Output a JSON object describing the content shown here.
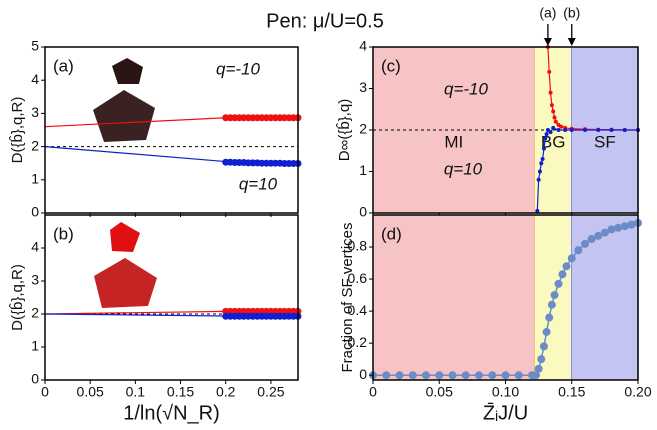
{
  "title": "Pen: μ/U=0.5",
  "chart_data": [
    {
      "type": "line",
      "panel": "(a)",
      "ylabel": "D({b̂},q,R)",
      "xlim": [
        0,
        0.28
      ],
      "ylim": [
        0,
        5
      ],
      "xticks": [
        0,
        0.05,
        0.1,
        0.15,
        0.2,
        0.25
      ],
      "show_xticklabels": false,
      "yticks": [
        0,
        1,
        2,
        3,
        4,
        5
      ],
      "hline": 2,
      "annotations": [
        {
          "text": "q=-10",
          "color": "#f01010"
        },
        {
          "text": "q=10",
          "color": "#1020d0"
        }
      ],
      "series": [
        {
          "color": "#f01010",
          "line_width": 1.2,
          "marker_size": 0,
          "x": [
            0,
            0.2
          ],
          "values": [
            2.6,
            2.87
          ]
        },
        {
          "color": "#f01010",
          "line_width": 0,
          "marker_size": 3.5,
          "x": [
            0.2,
            0.205,
            0.21,
            0.215,
            0.22,
            0.225,
            0.23,
            0.235,
            0.24,
            0.245,
            0.25,
            0.255,
            0.26,
            0.265,
            0.27,
            0.275,
            0.28
          ],
          "values": [
            2.87,
            2.87,
            2.87,
            2.87,
            2.87,
            2.87,
            2.87,
            2.87,
            2.87,
            2.87,
            2.87,
            2.87,
            2.87,
            2.87,
            2.87,
            2.87,
            2.87
          ]
        },
        {
          "color": "#1020d0",
          "line_width": 1.2,
          "marker_size": 0,
          "x": [
            0,
            0.2
          ],
          "values": [
            2.0,
            1.55
          ]
        },
        {
          "color": "#1020d0",
          "line_width": 0,
          "marker_size": 3.5,
          "x": [
            0.2,
            0.205,
            0.21,
            0.215,
            0.22,
            0.225,
            0.23,
            0.235,
            0.24,
            0.245,
            0.25,
            0.255,
            0.26,
            0.265,
            0.27,
            0.275,
            0.28
          ],
          "values": [
            1.53,
            1.53,
            1.52,
            1.52,
            1.52,
            1.51,
            1.51,
            1.51,
            1.5,
            1.5,
            1.5,
            1.5,
            1.5,
            1.49,
            1.49,
            1.49,
            1.49
          ]
        }
      ]
    },
    {
      "type": "line",
      "panel": "(b)",
      "ylabel": "D({b̂},q,R)",
      "xlabel": "1/ln(√N_R)",
      "xlim": [
        0,
        0.28
      ],
      "ylim": [
        0,
        5
      ],
      "xticks": [
        0,
        0.05,
        0.1,
        0.15,
        0.2,
        0.25
      ],
      "show_xticklabels": true,
      "yticks": [
        0,
        1,
        2,
        3,
        4
      ],
      "hline": 2,
      "series": [
        {
          "color": "#f01010",
          "line_width": 1.2,
          "marker_size": 0,
          "x": [
            0,
            0.2
          ],
          "values": [
            2.0,
            2.08
          ]
        },
        {
          "color": "#f01010",
          "line_width": 0,
          "marker_size": 3.5,
          "x": [
            0.2,
            0.205,
            0.21,
            0.215,
            0.22,
            0.225,
            0.23,
            0.235,
            0.24,
            0.245,
            0.25,
            0.255,
            0.26,
            0.265,
            0.27,
            0.275,
            0.28
          ],
          "values": [
            2.08,
            2.08,
            2.08,
            2.08,
            2.08,
            2.08,
            2.08,
            2.08,
            2.08,
            2.08,
            2.08,
            2.08,
            2.08,
            2.08,
            2.08,
            2.08,
            2.08
          ]
        },
        {
          "color": "#1020d0",
          "line_width": 1.2,
          "marker_size": 0,
          "x": [
            0,
            0.2
          ],
          "values": [
            2.0,
            1.94
          ]
        },
        {
          "color": "#1020d0",
          "line_width": 0,
          "marker_size": 3.5,
          "x": [
            0.2,
            0.205,
            0.21,
            0.215,
            0.22,
            0.225,
            0.23,
            0.235,
            0.24,
            0.245,
            0.25,
            0.255,
            0.26,
            0.265,
            0.27,
            0.275,
            0.28
          ],
          "values": [
            1.93,
            1.93,
            1.93,
            1.93,
            1.93,
            1.93,
            1.93,
            1.93,
            1.93,
            1.93,
            1.93,
            1.93,
            1.93,
            1.93,
            1.93,
            1.93,
            1.93
          ]
        }
      ]
    },
    {
      "type": "line",
      "panel": "(c)",
      "ylabel": "D∞({b̂},q)",
      "xlim": [
        0,
        0.2
      ],
      "ylim": [
        0,
        4
      ],
      "xticks": [
        0,
        0.05,
        0.1,
        0.15,
        0.2
      ],
      "show_xticklabels": false,
      "yticks": [
        0,
        1,
        2,
        3,
        4
      ],
      "hline": 2,
      "regions": [
        {
          "label": "MI",
          "range": [
            0,
            0.122
          ],
          "color": "#f6c4c4",
          "edge": "#f0a060"
        },
        {
          "label": "BG",
          "range": [
            0.122,
            0.15
          ],
          "color": "#fafac0",
          "edge": "#7878e8"
        },
        {
          "label": "SF",
          "range": [
            0.15,
            0.2
          ],
          "color": "#c4c4f2",
          "edge": "#c4c4f2"
        }
      ],
      "arrows": [
        {
          "label": "(a)",
          "x": 0.132
        },
        {
          "label": "(b)",
          "x": 0.15
        }
      ],
      "annotations": [
        {
          "text": "q=-10",
          "color": "#f01010"
        },
        {
          "text": "q=10",
          "color": "#1020d0"
        }
      ],
      "series": [
        {
          "color": "#f01010",
          "line_width": 1.2,
          "marker_size": 2,
          "x": [
            0.132,
            0.133,
            0.134,
            0.135,
            0.136,
            0.137,
            0.138,
            0.14,
            0.142,
            0.145,
            0.15,
            0.16,
            0.17,
            0.18,
            0.19,
            0.2
          ],
          "values": [
            4.0,
            3.4,
            2.9,
            2.6,
            2.45,
            2.3,
            2.2,
            2.12,
            2.08,
            2.05,
            2.03,
            2.02,
            2.01,
            2.01,
            2.0,
            2.0
          ]
        },
        {
          "color": "#1020d0",
          "line_width": 1.2,
          "marker_size": 2,
          "x": [
            0.124,
            0.125,
            0.126,
            0.127,
            0.128,
            0.129,
            0.13,
            0.131,
            0.132,
            0.134,
            0.136,
            0.14,
            0.145,
            0.15,
            0.16,
            0.17,
            0.18,
            0.19,
            0.2
          ],
          "values": [
            0.05,
            0.8,
            1.0,
            1.2,
            1.3,
            1.55,
            1.8,
            1.9,
            2.0,
            1.95,
            2.05,
            2.0,
            2.0,
            2.0,
            2.0,
            2.0,
            2.0,
            2.0,
            2.0
          ]
        }
      ]
    },
    {
      "type": "line",
      "panel": "(d)",
      "ylabel": "Fraction of SF vertices",
      "xlabel": "Z̄ᵢJ/U",
      "xlim": [
        0,
        0.2
      ],
      "ylim": [
        -0.03,
        1.0
      ],
      "xticks": [
        0,
        {
          "value": 0.05,
          "label": "0.05"
        },
        {
          "value": 0.1,
          "label": "0.10"
        },
        {
          "value": 0.15,
          "label": "0.15"
        },
        {
          "value": 0.2,
          "label": "0.20"
        }
      ],
      "show_xticklabels": true,
      "yticks": [
        0,
        0.2,
        0.4,
        0.6,
        0.8
      ],
      "regions": [
        {
          "range": [
            0,
            0.122
          ],
          "color": "#f6c4c4",
          "edge": "#f0a060"
        },
        {
          "range": [
            0.122,
            0.15
          ],
          "color": "#fafac0",
          "edge": "#7878e8"
        },
        {
          "range": [
            0.15,
            0.2
          ],
          "color": "#c4c4f2",
          "edge": "#c4c4f2"
        }
      ],
      "series": [
        {
          "color": "#6b8cc7",
          "line_width": 1.5,
          "marker_size": 4,
          "x": [
            0,
            0.01,
            0.02,
            0.03,
            0.04,
            0.05,
            0.06,
            0.07,
            0.08,
            0.09,
            0.1,
            0.11,
            0.12,
            0.123,
            0.125,
            0.127,
            0.129,
            0.131,
            0.133,
            0.135,
            0.137,
            0.14,
            0.143,
            0.146,
            0.15,
            0.155,
            0.16,
            0.165,
            0.17,
            0.175,
            0.18,
            0.185,
            0.19,
            0.195,
            0.2
          ],
          "values": [
            0,
            0,
            0,
            0,
            0,
            0,
            0,
            0,
            0,
            0,
            0,
            0,
            0,
            0.0,
            0.04,
            0.1,
            0.18,
            0.27,
            0.36,
            0.44,
            0.5,
            0.57,
            0.63,
            0.68,
            0.73,
            0.78,
            0.82,
            0.85,
            0.87,
            0.89,
            0.91,
            0.92,
            0.93,
            0.94,
            0.95
          ]
        }
      ]
    }
  ]
}
